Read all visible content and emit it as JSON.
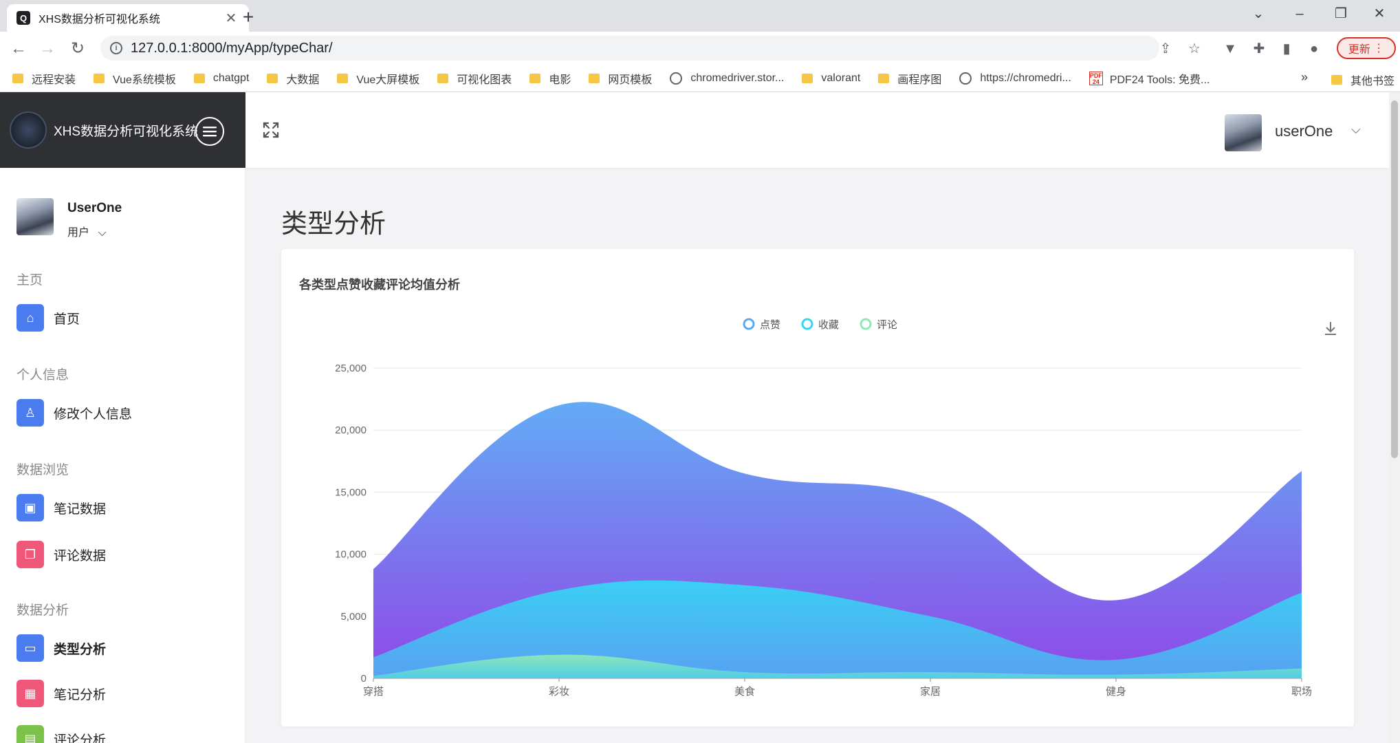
{
  "browser": {
    "tab_title": "XHS数据分析可视化系统",
    "url": "127.0.0.1:8000/myApp/typeChar/",
    "update_label": "更新",
    "bookmarks": [
      "远程安装",
      "Vue系统模板",
      "chatgpt",
      "大数据",
      "Vue大屏模板",
      "可视化图表",
      "电影",
      "网页模板",
      "chromedriver.stor...",
      "valorant",
      "画程序图",
      "https://chromedri...",
      "PDF24 Tools: 免费..."
    ],
    "bookmark_other": "其他书签",
    "bookmark_more": "»"
  },
  "app": {
    "brand": "XHS数据分析可视化系统",
    "top_user": "userOne"
  },
  "sidebar": {
    "profile_name": "UserOne",
    "profile_role": "用户",
    "sections": {
      "home": "主页",
      "personal": "个人信息",
      "browse": "数据浏览",
      "analysis": "数据分析"
    },
    "items": {
      "home": "首页",
      "edit_profile": "修改个人信息",
      "note_data": "笔记数据",
      "comment_data": "评论数据",
      "type_analysis": "类型分析",
      "note_analysis": "笔记分析",
      "comment_analysis": "评论分析"
    }
  },
  "page": {
    "title": "类型分析",
    "card_title": "各类型点赞收藏评论均值分析"
  },
  "chart_data": {
    "type": "area",
    "categories": [
      "穿搭",
      "彩妆",
      "美食",
      "家居",
      "健身",
      "职场"
    ],
    "ylim": [
      0,
      25000
    ],
    "yticks": [
      "0",
      "5,000",
      "10,000",
      "15,000",
      "20,000",
      "25,000"
    ],
    "legend_position": "top-center",
    "grid": true,
    "smooth": true,
    "series": [
      {
        "name": "点赞",
        "values": [
          8800,
          22000,
          16500,
          14500,
          6300,
          16700
        ],
        "color": "#5aa7f5"
      },
      {
        "name": "收藏",
        "values": [
          1700,
          7100,
          7500,
          5000,
          1500,
          6900
        ],
        "color": "#37d4f4"
      },
      {
        "name": "评论",
        "values": [
          200,
          1900,
          500,
          500,
          300,
          800
        ],
        "color": "#8fe8b7"
      }
    ]
  }
}
